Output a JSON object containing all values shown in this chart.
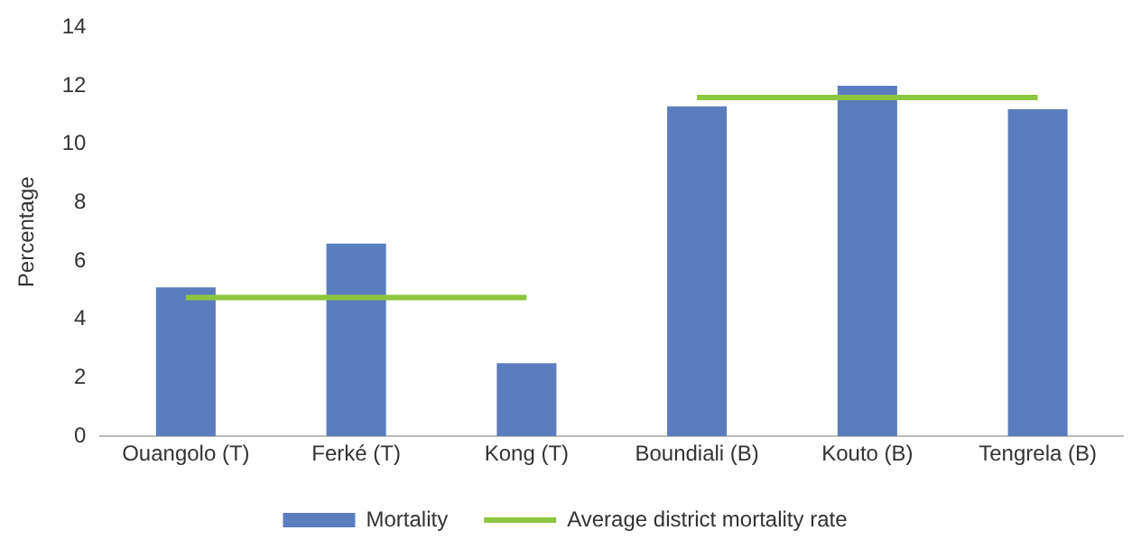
{
  "chart_data": {
    "type": "bar",
    "ylabel": "Percentage",
    "categories": [
      "Ouangolo (T)",
      "Ferké (T)",
      "Kong (T)",
      "Boundiali (B)",
      "Kouto (B)",
      "Tengrela (B)"
    ],
    "series": [
      {
        "name": "Mortality",
        "color": "#5b7dbf",
        "values": [
          5.1,
          6.6,
          2.5,
          11.3,
          12.0,
          11.2
        ]
      },
      {
        "name": "Average district mortality rate",
        "type": "line",
        "color": "#8dc63f",
        "values": [
          4.75,
          4.75,
          4.75,
          null,
          null,
          null
        ]
      },
      {
        "type": "line",
        "color": "#8dc63f",
        "values": [
          null,
          null,
          null,
          11.6,
          11.6,
          11.6
        ]
      }
    ],
    "ylim": [
      0,
      14
    ],
    "yticks": [
      0,
      2,
      4,
      6,
      8,
      10,
      12,
      14
    ],
    "grid": false,
    "legend": "bottom",
    "marker": "none"
  }
}
